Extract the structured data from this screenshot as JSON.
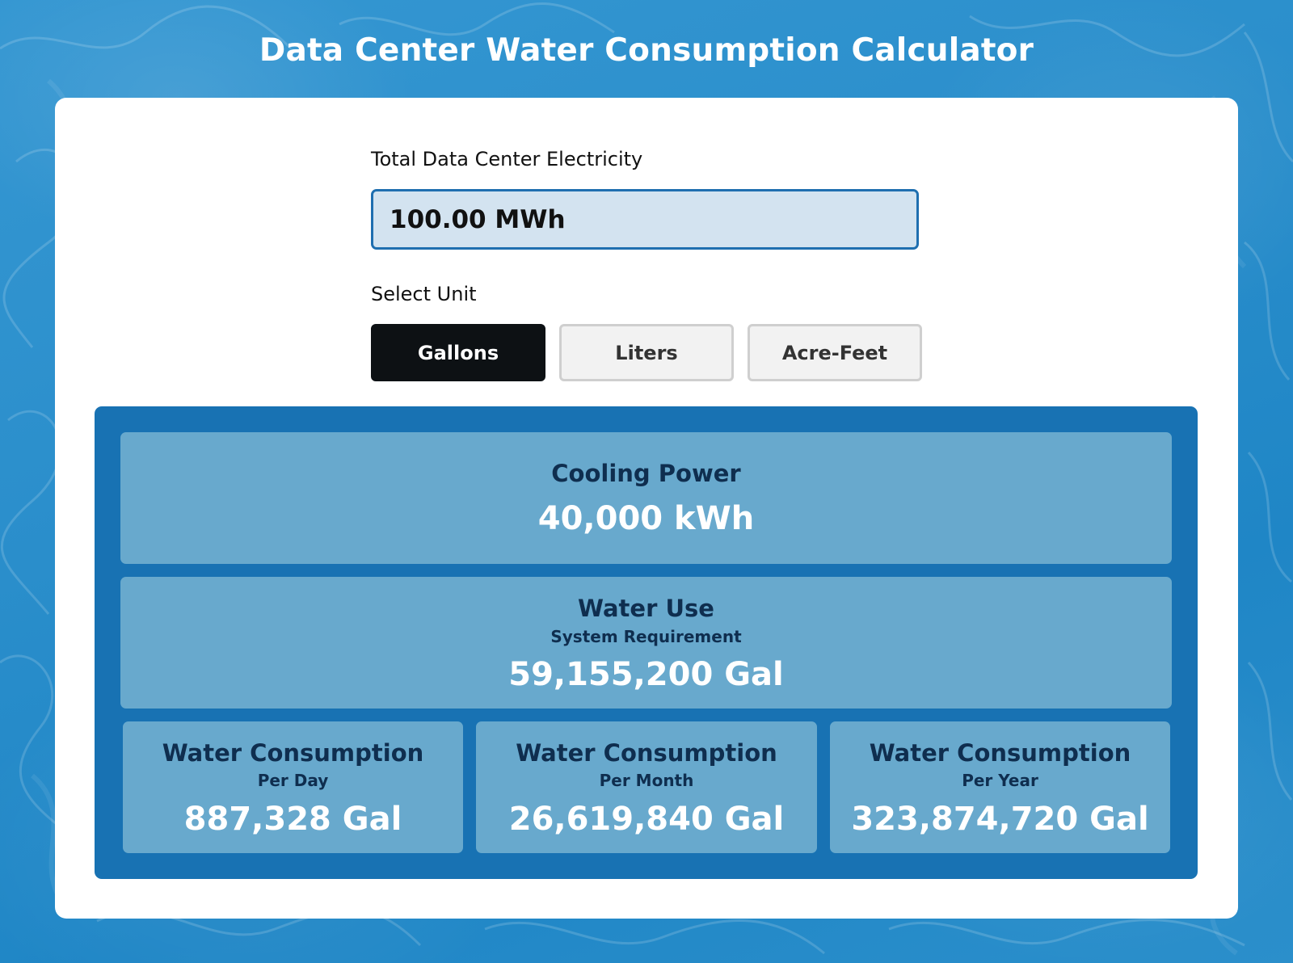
{
  "page": {
    "title": "Data Center Water Consumption Calculator"
  },
  "electricity": {
    "label": "Total Data Center Electricity",
    "value": "100.00 MWh"
  },
  "unit_selector": {
    "label": "Select Unit",
    "options": [
      "Gallons",
      "Liters",
      "Acre-Feet"
    ],
    "selected": "Gallons"
  },
  "results": {
    "cooling": {
      "title": "Cooling Power",
      "value": "40,000 kWh"
    },
    "water_use": {
      "title": "Water Use",
      "subtitle": "System Requirement",
      "value": "59,155,200 Gal"
    },
    "per_day": {
      "title": "Water Consumption",
      "subtitle": "Per Day",
      "value": "887,328 Gal"
    },
    "per_month": {
      "title": "Water Consumption",
      "subtitle": "Per Month",
      "value": "26,619,840 Gal"
    },
    "per_year": {
      "title": "Water Consumption",
      "subtitle": "Per Year",
      "value": "323,874,720 Gal"
    }
  },
  "colors": {
    "background": "#2a8fca",
    "card": "#ffffff",
    "input_bg": "#d3e3f0",
    "input_border": "#1f6fb0",
    "active_button": "#0d1114",
    "results_bg": "#1872b3",
    "panel_bg": "#68a9cd",
    "panel_title": "#0f2e4f"
  }
}
